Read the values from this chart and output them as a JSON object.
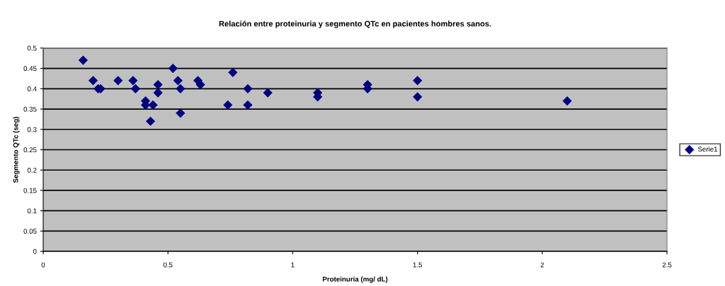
{
  "chart_data": {
    "type": "scatter",
    "title": "Relación entre proteinuria y segmento QTc en pacientes hombres sanos.",
    "xlabel": "Proteinuria (mg/ dL)",
    "ylabel": "Segmento QTc (seg)",
    "series": [
      {
        "name": "Serie1",
        "color": "#000080",
        "x": [
          0.16,
          0.2,
          0.22,
          0.23,
          0.3,
          0.36,
          0.37,
          0.41,
          0.41,
          0.44,
          0.43,
          0.46,
          0.46,
          0.52,
          0.54,
          0.55,
          0.55,
          0.62,
          0.63,
          0.74,
          0.76,
          0.82,
          0.82,
          0.9,
          1.1,
          1.1,
          1.3,
          1.3,
          1.5,
          1.5,
          2.1
        ],
        "values": [
          0.47,
          0.42,
          0.4,
          0.4,
          0.42,
          0.42,
          0.4,
          0.37,
          0.36,
          0.36,
          0.32,
          0.41,
          0.39,
          0.45,
          0.42,
          0.4,
          0.34,
          0.42,
          0.41,
          0.36,
          0.44,
          0.4,
          0.36,
          0.39,
          0.39,
          0.38,
          0.41,
          0.4,
          0.42,
          0.38,
          0.37
        ]
      }
    ],
    "xlim": [
      0,
      2.5
    ],
    "xticks": [
      0,
      0.5,
      1,
      1.5,
      2,
      2.5
    ],
    "ylim": [
      0,
      0.5
    ],
    "yticks": [
      0,
      0.05,
      0.1,
      0.15,
      0.2,
      0.25,
      0.3,
      0.35,
      0.4,
      0.45,
      0.5
    ],
    "grid": "y",
    "legend": "right",
    "marker": "diamond"
  }
}
